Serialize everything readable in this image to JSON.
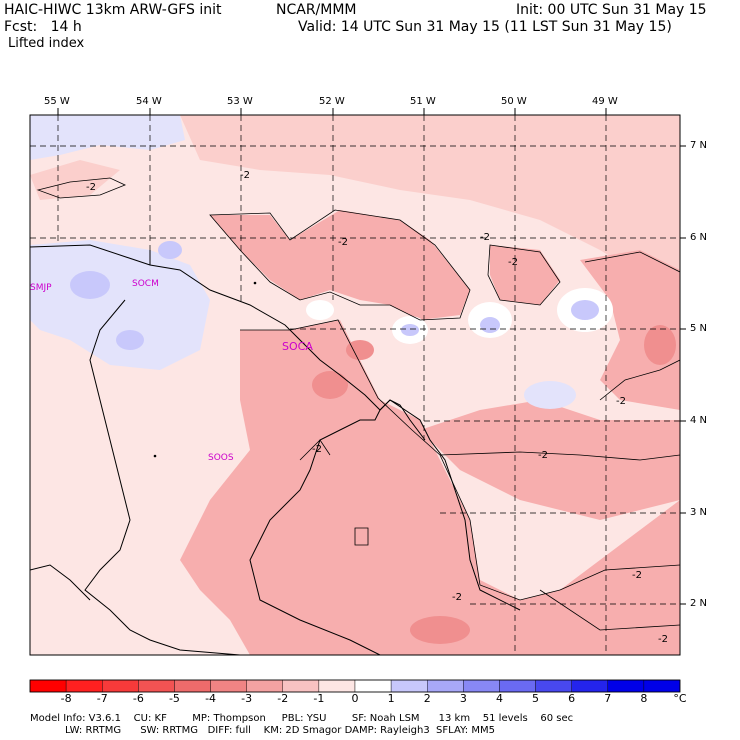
{
  "header": {
    "model_title": "HAIC-HIWC 13km ARW-GFS init",
    "org": "NCAR/MMM",
    "init": "Init: 00 UTC Sun 31 May 15",
    "fcst": "Fcst:   14 h",
    "valid": "Valid: 14 UTC Sun 31 May 15 (11 LST Sun 31 May 15)",
    "field": "Lifted index"
  },
  "map": {
    "lon_labels": [
      "55 W",
      "54 W",
      "53 W",
      "52 W",
      "51 W",
      "50 W",
      "49 W"
    ],
    "lat_labels": [
      "7 N",
      "6 N",
      "5 N",
      "4 N",
      "3 N",
      "2 N"
    ],
    "stations": [
      "SMJP",
      "SOCM",
      "SOCA",
      "SOOS"
    ],
    "contour_labels": [
      "-2",
      "-2",
      "-2",
      "-2",
      "-2",
      "-2",
      "-2",
      "-2",
      "-2",
      "-2",
      "-2"
    ],
    "colors": {
      "ocean_light": "#fde6e4",
      "pink_1": "#fbcfcc",
      "pink_2": "#f7aeae",
      "pink_3": "#f08f8f",
      "blue_1": "#e3e3fb",
      "blue_2": "#b9b9f5"
    }
  },
  "colorbar": {
    "labels": [
      "-8",
      "-7",
      "-6",
      "-5",
      "-4",
      "-3",
      "-2",
      "-1",
      "0",
      "1",
      "2",
      "3",
      "4",
      "5",
      "6",
      "7",
      "8"
    ],
    "unit": "°C",
    "colors": [
      "#ff0000",
      "#ff2020",
      "#f73a3a",
      "#f25353",
      "#ee6b6b",
      "#f08484",
      "#f4a2a2",
      "#f8c2c2",
      "#fde6e4",
      "#ffffff",
      "#c8c8fb",
      "#a8a8f8",
      "#8888f5",
      "#6a6af2",
      "#4848ef",
      "#2424ec",
      "#0000e8"
    ]
  },
  "model_info": {
    "line1": "Model Info: V3.6.1    CU: KF        MP: Thompson     PBL: YSU        SF: Noah LSM      13 km    51 levels    60 sec",
    "line2": "           LW: RRTMG      SW: RRTMG   DIFF: full    KM: 2D Smagor DAMP: Rayleigh3  SFLAY: MM5"
  }
}
